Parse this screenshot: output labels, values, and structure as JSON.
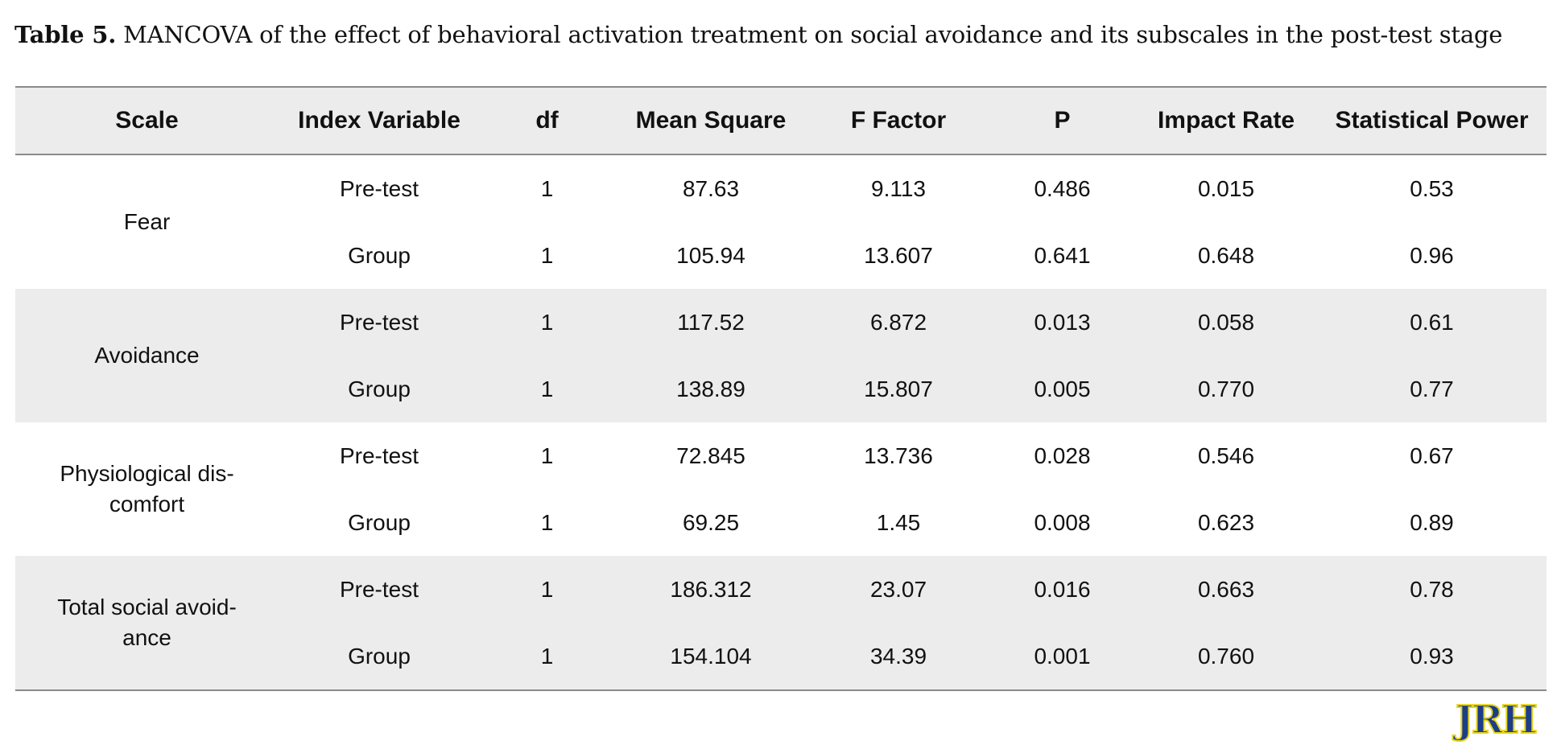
{
  "caption": {
    "label": "Table 5.",
    "text": " MANCOVA of the effect of behavioral activation treatment on social avoidance and its subscales in the post-test stage"
  },
  "table": {
    "headers": [
      "Scale",
      "Index Variable",
      "df",
      "Mean Square",
      "F Factor",
      "P",
      "Impact Rate",
      "Statistical Power"
    ],
    "groups": [
      {
        "scale": "Fear",
        "rows": [
          [
            "Pre-test",
            "1",
            "87.63",
            "9.113",
            "0.486",
            "0.015",
            "0.53"
          ],
          [
            "Group",
            "1",
            "105.94",
            "13.607",
            "0.641",
            "0.648",
            "0.96"
          ]
        ]
      },
      {
        "scale": "Avoidance",
        "rows": [
          [
            "Pre-test",
            "1",
            "117.52",
            "6.872",
            "0.013",
            "0.058",
            "0.61"
          ],
          [
            "Group",
            "1",
            "138.89",
            "15.807",
            "0.005",
            "0.770",
            "0.77"
          ]
        ]
      },
      {
        "scale": "Physiological dis-comfort",
        "rows": [
          [
            "Pre-test",
            "1",
            "72.845",
            "13.736",
            "0.028",
            "0.546",
            "0.67"
          ],
          [
            "Group",
            "1",
            "69.25",
            "1.45",
            "0.008",
            "0.623",
            "0.89"
          ]
        ]
      },
      {
        "scale": "Total social avoid-ance",
        "rows": [
          [
            "Pre-test",
            "1",
            "186.312",
            "23.07",
            "0.016",
            "0.663",
            "0.78"
          ],
          [
            "Group",
            "1",
            "154.104",
            "34.39",
            "0.001",
            "0.760",
            "0.93"
          ]
        ]
      }
    ]
  },
  "logo": {
    "text": "JRH"
  },
  "colors": {
    "header_bg": "#ececec",
    "logo_fill": "#1c3d87",
    "logo_outline": "#e4d41c"
  }
}
